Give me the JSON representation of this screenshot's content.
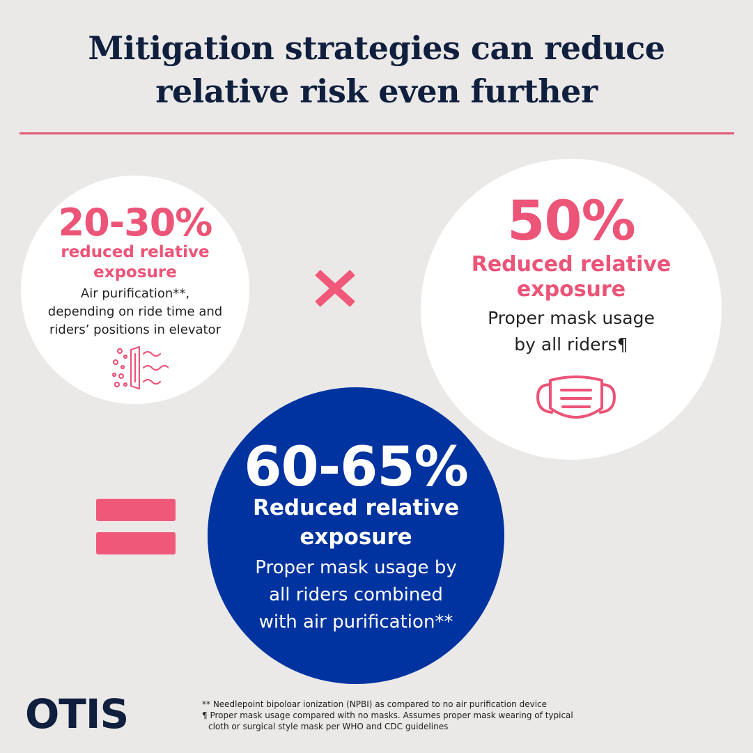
{
  "title": {
    "line1": "Mitigation strategies can reduce",
    "line2": "relative risk even further"
  },
  "air_purification": {
    "stat": "20-30%",
    "label_line1": "reduced relative",
    "label_line2": "exposure",
    "desc_line1": "Air purification**,",
    "desc_line2": "depending on ride time and",
    "desc_line3": "riders’ positions in elevator",
    "icon": "air-purifier-icon"
  },
  "operator_times": "multiply-icon",
  "mask": {
    "stat": "50%",
    "label_line1": "Reduced relative",
    "label_line2": "exposure",
    "desc_line1": "Proper mask usage",
    "desc_line2": "by all riders¶",
    "icon": "face-mask-icon"
  },
  "operator_equals": "equals-icon",
  "combined": {
    "stat": "60-65%",
    "label_line1": "Reduced relative",
    "label_line2": "exposure",
    "desc_line1": "Proper mask usage by",
    "desc_line2": "all riders combined",
    "desc_line3": "with air purification**"
  },
  "logo": "OTIS",
  "footnotes": {
    "note1": "** Needlepoint bipoloar ionization (NPBI) as compared to no air purification device",
    "note2_line1": "¶ Proper mask usage compared with no masks. Assumes proper mask wearing of typical",
    "note2_line2": "cloth or surgical style mask per WHO and CDC guidelines"
  },
  "colors": {
    "background": "#ebe9e8",
    "navy": "#0f1f3d",
    "accent_pink": "#ec5478",
    "blue": "#0033a0",
    "white": "#ffffff"
  }
}
